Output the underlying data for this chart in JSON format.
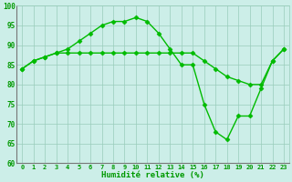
{
  "x": [
    0,
    1,
    2,
    3,
    4,
    5,
    6,
    7,
    8,
    9,
    10,
    11,
    12,
    13,
    14,
    15,
    16,
    17,
    18,
    19,
    20,
    21,
    22,
    23
  ],
  "line1": [
    84,
    86,
    87,
    88,
    89,
    91,
    93,
    95,
    96,
    96,
    97,
    96,
    93,
    89,
    85,
    85,
    75,
    68,
    66,
    72,
    72,
    79,
    86,
    89
  ],
  "line2": [
    84,
    86,
    87,
    88,
    88,
    88,
    88,
    88,
    88,
    88,
    88,
    88,
    88,
    88,
    88,
    88,
    86,
    84,
    82,
    81,
    80,
    80,
    86,
    89
  ],
  "line_color": "#00bb00",
  "bg_color": "#cceee8",
  "grid_color": "#99ccbb",
  "ylim": [
    60,
    100
  ],
  "yticks": [
    60,
    65,
    70,
    75,
    80,
    85,
    90,
    95,
    100
  ],
  "xlabel": "Humidité relative (%)",
  "xlabel_color": "#009900",
  "tick_color": "#009900",
  "marker": "D",
  "markersize": 2.5,
  "linewidth": 1.0
}
